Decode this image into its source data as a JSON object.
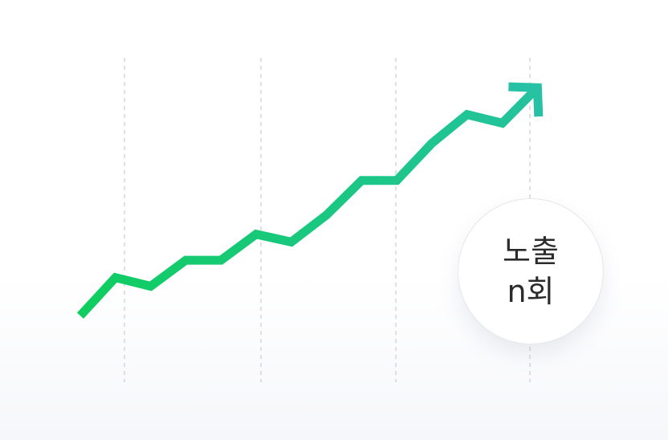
{
  "chart_data": {
    "type": "line",
    "title": "",
    "xlabel": "",
    "ylabel": "",
    "x": [
      0,
      1,
      2,
      3,
      4,
      5,
      6,
      7,
      8,
      9,
      10,
      11,
      12,
      13
    ],
    "y": [
      1.0,
      5.4,
      4.4,
      7.4,
      7.4,
      10.4,
      9.5,
      12.6,
      16.6,
      16.6,
      20.9,
      24.2,
      23.2,
      27.3
    ],
    "ylim": [
      0,
      30
    ],
    "grid": "vertical-dashed",
    "arrow_end": true,
    "colors": {
      "line_start": "#0fcd5f",
      "line_end": "#27c1a6",
      "grid": "#d4d6db"
    }
  },
  "badge": {
    "line1": "노출",
    "line2": "n회"
  }
}
